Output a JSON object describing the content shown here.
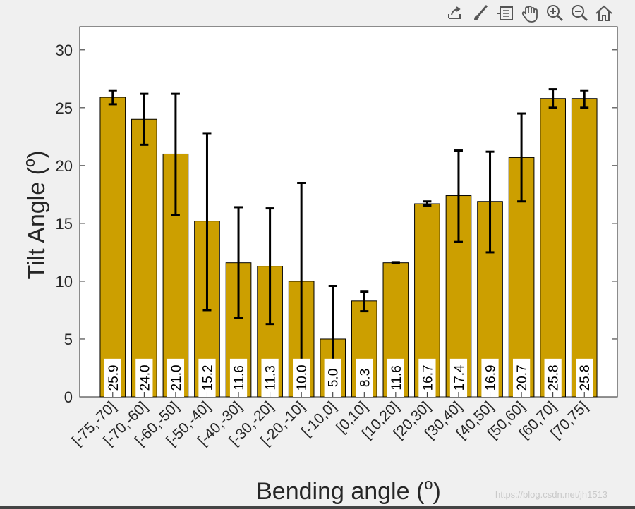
{
  "toolbar": {
    "icons": [
      "export-icon",
      "brush-icon",
      "data-tips-icon",
      "pan-icon",
      "zoom-in-icon",
      "zoom-out-icon",
      "home-icon"
    ]
  },
  "watermark": "https://blog.csdn.net/jh1513",
  "colors": {
    "bar": "#cc9f00",
    "figure_bg": "#f0f0f0",
    "axes_bg": "#ffffff",
    "axis": "#262626",
    "error": "#000000"
  },
  "chart_data": {
    "type": "bar",
    "title": "",
    "xlabel": "Bending angle (",
    "xlabel_sup": "o",
    "xlabel_close": ")",
    "ylabel": "Tilt Angle (",
    "ylabel_sup": "o",
    "ylabel_close": ")",
    "ylim": [
      0,
      32
    ],
    "yticks": [
      0,
      5,
      10,
      15,
      20,
      25,
      30
    ],
    "categories": [
      "[-75,-70]",
      "[-70,-60]",
      "[-60,-50]",
      "[-50,-40]",
      "[-40,-30]",
      "[-30,-20]",
      "[-20,-10]",
      "[-10,0]",
      "[0,10]",
      "[10,20]",
      "[20,30]",
      "[30,40]",
      "[40,50]",
      "[50,60]",
      "[60,70]",
      "[70,75]"
    ],
    "values": [
      25.9,
      24.0,
      21.0,
      15.2,
      11.6,
      11.3,
      10.0,
      5.0,
      8.3,
      11.6,
      16.7,
      17.4,
      16.9,
      20.7,
      25.8,
      25.8
    ],
    "labels": [
      "25.9",
      "24.0",
      "21.0",
      "15.2",
      "11.6",
      "11.3",
      "10.0",
      "5.0",
      "8.3",
      "11.6",
      "16.7",
      "17.4",
      "16.9",
      "20.7",
      "25.8",
      "25.8"
    ],
    "error_low": [
      25.3,
      21.8,
      15.7,
      7.5,
      6.8,
      6.3,
      3.2,
      2.5,
      7.4,
      11.55,
      16.55,
      13.4,
      12.5,
      16.9,
      25.0,
      25.0
    ],
    "error_high": [
      26.5,
      26.2,
      26.2,
      22.8,
      16.4,
      16.3,
      18.5,
      9.6,
      9.1,
      11.65,
      16.9,
      21.3,
      21.2,
      24.5,
      26.6,
      26.5
    ],
    "grid": false
  }
}
